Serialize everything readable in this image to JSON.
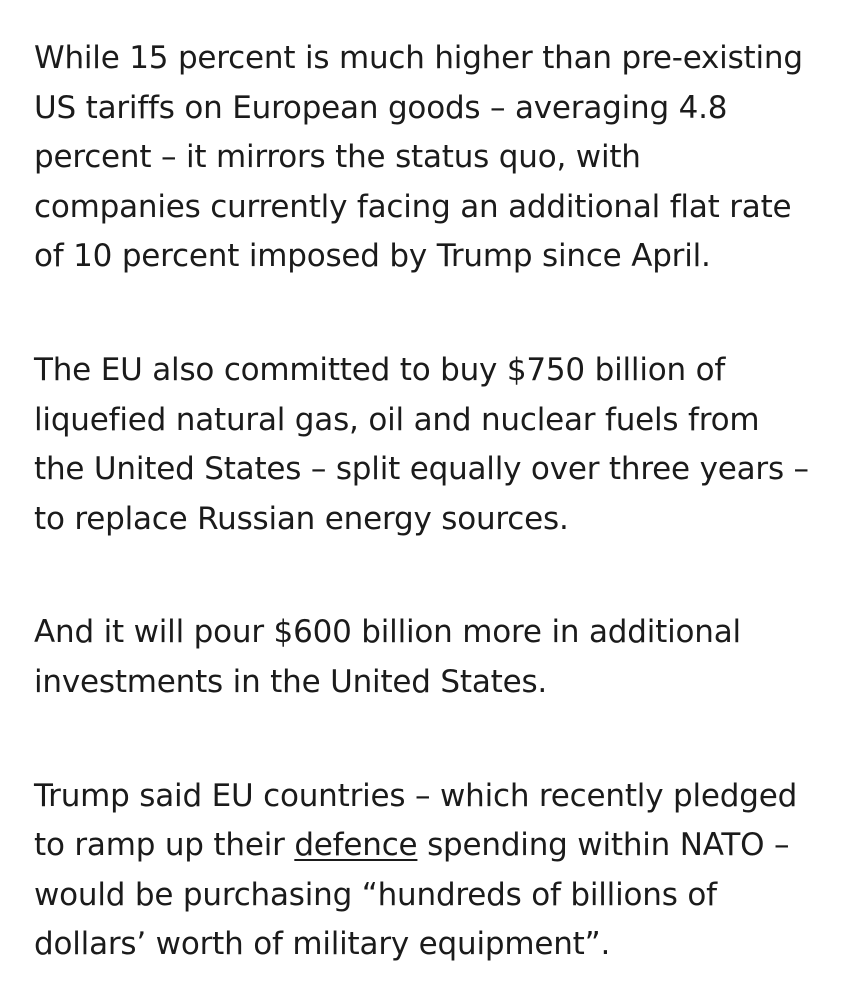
{
  "article": {
    "paragraphs": [
      {
        "lines": [
          "While 15 percent is much higher than pre-existing",
          "US tariffs on European goods – averaging 4.8",
          "percent – it mirrors the status quo, with",
          "companies currently facing an additional flat rate",
          "of 10 percent imposed by Trump since April."
        ]
      },
      {
        "lines": [
          "The EU also committed to buy $750 billion of",
          "liquefied natural gas, oil and nuclear fuels from",
          "the United States – split equally over three years –",
          "to replace Russian energy sources."
        ]
      },
      {
        "lines": [
          "And it will pour $600 billion more in additional",
          "investments in the United States."
        ]
      },
      {
        "lines": [
          "Trump said EU countries – which recently pledged",
          "to ramp up their ",
          "would be purchasing “hundreds of billions of",
          "dollars’ worth of military equipment”."
        ],
        "link_text": "defence",
        "after_link": " spending within NATO –"
      }
    ]
  }
}
